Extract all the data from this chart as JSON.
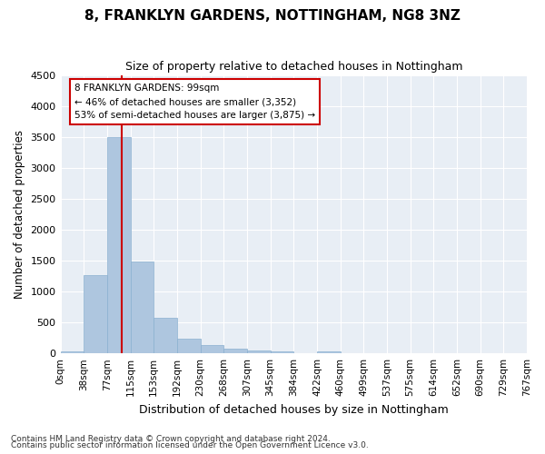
{
  "title": "8, FRANKLYN GARDENS, NOTTINGHAM, NG8 3NZ",
  "subtitle": "Size of property relative to detached houses in Nottingham",
  "xlabel": "Distribution of detached houses by size in Nottingham",
  "ylabel": "Number of detached properties",
  "bar_color": "#aec6df",
  "bar_edge_color": "#8ab0d0",
  "background_color": "#e8eef5",
  "grid_color": "#ffffff",
  "bin_labels": [
    "0sqm",
    "38sqm",
    "77sqm",
    "115sqm",
    "153sqm",
    "192sqm",
    "230sqm",
    "268sqm",
    "307sqm",
    "345sqm",
    "384sqm",
    "422sqm",
    "460sqm",
    "499sqm",
    "537sqm",
    "575sqm",
    "614sqm",
    "652sqm",
    "690sqm",
    "729sqm",
    "767sqm"
  ],
  "bar_heights": [
    30,
    1260,
    3500,
    1480,
    575,
    245,
    135,
    80,
    50,
    25,
    10,
    30,
    5,
    0,
    0,
    0,
    0,
    0,
    0,
    0
  ],
  "ylim": [
    0,
    4500
  ],
  "yticks": [
    0,
    500,
    1000,
    1500,
    2000,
    2500,
    3000,
    3500,
    4000,
    4500
  ],
  "property_bin_index": 2,
  "red_line_x": 2.62,
  "annotation_text": "8 FRANKLYN GARDENS: 99sqm\n← 46% of detached houses are smaller (3,352)\n53% of semi-detached houses are larger (3,875) →",
  "annotation_box_color": "#ffffff",
  "annotation_box_edge": "#cc0000",
  "footnote1": "Contains HM Land Registry data © Crown copyright and database right 2024.",
  "footnote2": "Contains public sector information licensed under the Open Government Licence v3.0."
}
